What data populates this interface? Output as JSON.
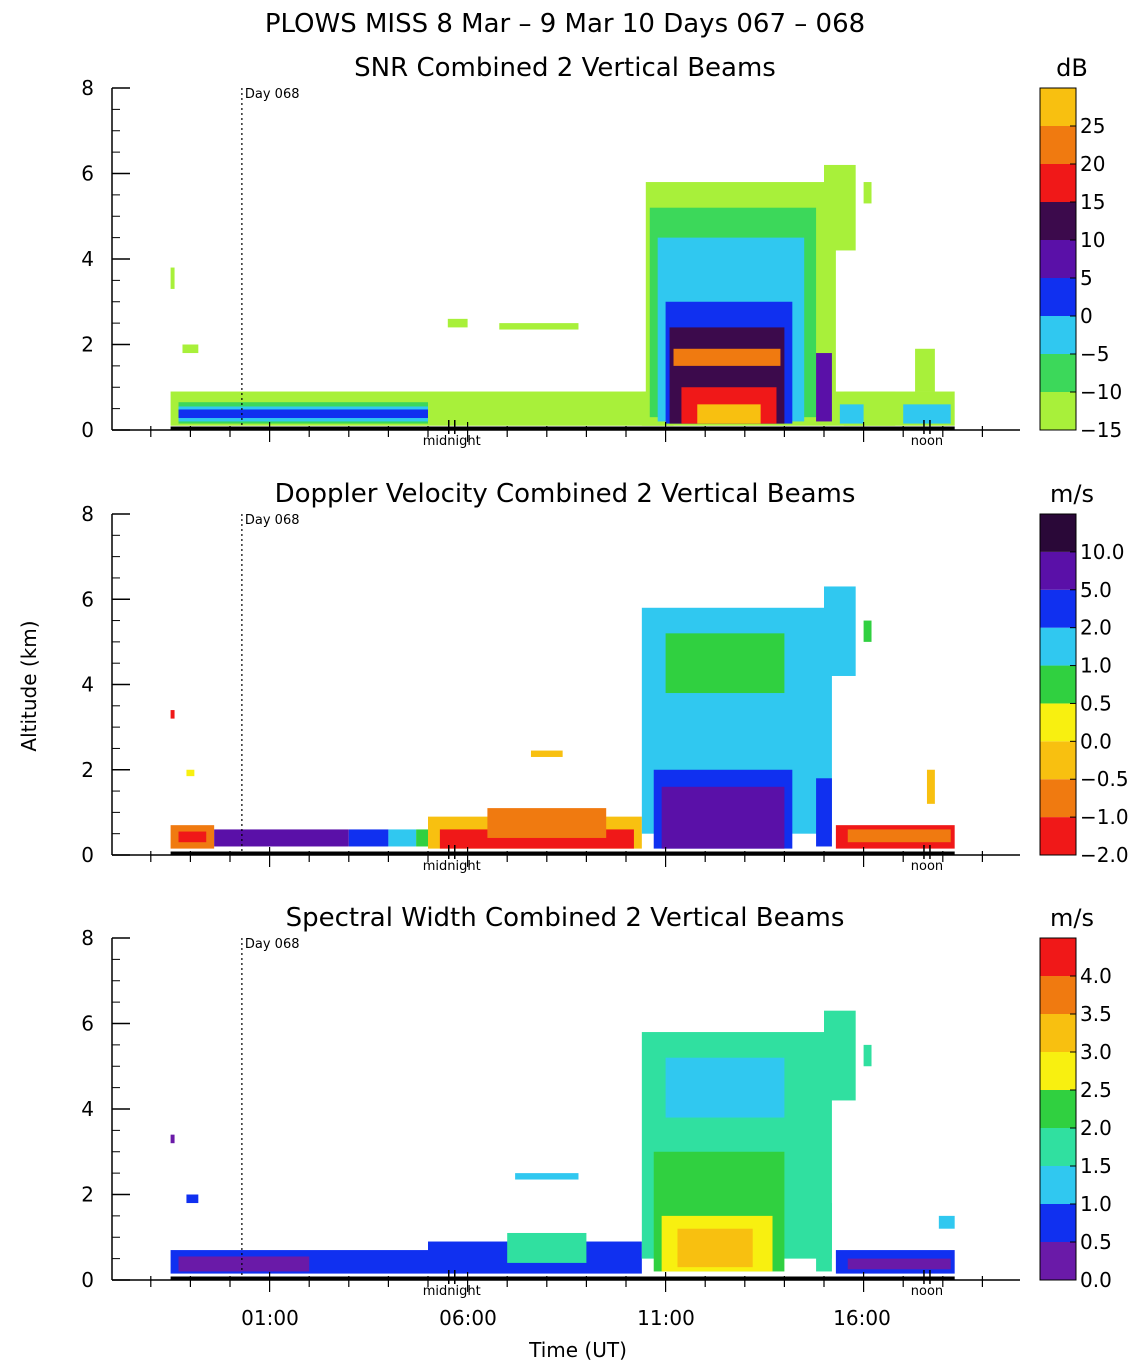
{
  "figure": {
    "title": "PLOWS MISS   8 Mar –  9 Mar 10 Days 067 – 068",
    "ylabel": "Altitude (km)",
    "xlabel": "Time (UT)",
    "x_tick_labels": [
      "01:00",
      "06:00",
      "11:00",
      "16:00"
    ],
    "marker_labels": {
      "day": "Day 068",
      "midnight": "midnight",
      "noon": "noon"
    }
  },
  "chart_data": [
    {
      "type": "heatmap",
      "title": "SNR Combined 2 Vertical Beams",
      "ylim": [
        0,
        8
      ],
      "y_ticks": [
        "0",
        "2",
        "4",
        "6",
        "8"
      ],
      "colorbar": {
        "unit": "dB",
        "labels": [
          "25",
          "20",
          "15",
          "10",
          "5",
          "0",
          "−5",
          "−10",
          "−15"
        ],
        "colors": [
          "#a8f03a",
          "#3cd85a",
          "#30c8f0",
          "#1030f0",
          "#5a10a8",
          "#3c0a4c",
          "#f01818",
          "#f07a10",
          "#f8c010"
        ]
      },
      "regions": [
        {
          "t": [
            -1.5,
            11.2
          ],
          "alt": [
            0.1,
            0.9
          ],
          "level": 0
        },
        {
          "t": [
            -1.3,
            5.0
          ],
          "alt": [
            0.15,
            0.65
          ],
          "level": 1
        },
        {
          "t": [
            -1.3,
            5.0
          ],
          "alt": [
            0.2,
            0.55
          ],
          "level": 2
        },
        {
          "t": [
            -1.3,
            5.0
          ],
          "alt": [
            0.28,
            0.48
          ],
          "level": 3
        },
        {
          "t": [
            -1.5,
            -1.4
          ],
          "alt": [
            3.3,
            3.8
          ],
          "level": 0
        },
        {
          "t": [
            -1.2,
            -0.8
          ],
          "alt": [
            1.8,
            2.0
          ],
          "level": 0
        },
        {
          "t": [
            5.5,
            6.0
          ],
          "alt": [
            2.4,
            2.6
          ],
          "level": 0
        },
        {
          "t": [
            6.8,
            8.8
          ],
          "alt": [
            2.35,
            2.5
          ],
          "level": 0
        },
        {
          "t": [
            10.4,
            16.8
          ],
          "alt": [
            0.1,
            0.9
          ],
          "level": 0
        },
        {
          "t": [
            10.5,
            15.3
          ],
          "alt": [
            0.5,
            5.8
          ],
          "level": 0
        },
        {
          "t": [
            10.6,
            14.8
          ],
          "alt": [
            0.3,
            5.2
          ],
          "level": 1
        },
        {
          "t": [
            10.8,
            14.5
          ],
          "alt": [
            0.2,
            4.5
          ],
          "level": 2
        },
        {
          "t": [
            11.0,
            14.2
          ],
          "alt": [
            0.15,
            3.0
          ],
          "level": 3
        },
        {
          "t": [
            11.1,
            14.0
          ],
          "alt": [
            0.15,
            2.4
          ],
          "level": 5
        },
        {
          "t": [
            11.2,
            13.9
          ],
          "alt": [
            1.5,
            1.9
          ],
          "level": 7
        },
        {
          "t": [
            11.4,
            13.8
          ],
          "alt": [
            0.15,
            1.0
          ],
          "level": 6
        },
        {
          "t": [
            11.8,
            13.4
          ],
          "alt": [
            0.15,
            0.6
          ],
          "level": 8
        },
        {
          "t": [
            14.8,
            15.2
          ],
          "alt": [
            0.2,
            1.8
          ],
          "level": 4
        },
        {
          "t": [
            15.0,
            15.8
          ],
          "alt": [
            4.2,
            6.2
          ],
          "level": 0
        },
        {
          "t": [
            16.0,
            16.2
          ],
          "alt": [
            5.3,
            5.8
          ],
          "level": 0
        },
        {
          "t": [
            15.5,
            18.3
          ],
          "alt": [
            0.1,
            0.9
          ],
          "level": 0
        },
        {
          "t": [
            17.3,
            17.8
          ],
          "alt": [
            0.9,
            1.9
          ],
          "level": 0
        },
        {
          "t": [
            15.4,
            16.0
          ],
          "alt": [
            0.15,
            0.6
          ],
          "level": 2
        },
        {
          "t": [
            17.0,
            18.2
          ],
          "alt": [
            0.15,
            0.6
          ],
          "level": 2
        }
      ]
    },
    {
      "type": "heatmap",
      "title": "Doppler Velocity Combined 2 Vertical Beams",
      "ylim": [
        0,
        8
      ],
      "y_ticks": [
        "0",
        "2",
        "4",
        "6",
        "8"
      ],
      "colorbar": {
        "unit": "m/s",
        "labels": [
          "10.0",
          "5.0",
          "2.0",
          "1.0",
          "0.5",
          "0.0",
          "−0.5",
          "−1.0",
          "−2.0"
        ],
        "colors": [
          "#f01818",
          "#f07a10",
          "#f8c010",
          "#f8f010",
          "#30d040",
          "#30c8f0",
          "#1030f0",
          "#5a10a8",
          "#2a0838"
        ]
      },
      "regions": [
        {
          "t": [
            -1.5,
            -0.4
          ],
          "alt": [
            0.15,
            0.7
          ],
          "level": 1
        },
        {
          "t": [
            -1.3,
            -0.6
          ],
          "alt": [
            0.3,
            0.55
          ],
          "level": 0
        },
        {
          "t": [
            -0.4,
            3.0
          ],
          "alt": [
            0.2,
            0.6
          ],
          "level": 7
        },
        {
          "t": [
            3.0,
            4.0
          ],
          "alt": [
            0.2,
            0.6
          ],
          "level": 6
        },
        {
          "t": [
            4.0,
            4.7
          ],
          "alt": [
            0.2,
            0.6
          ],
          "level": 5
        },
        {
          "t": [
            4.7,
            5.2
          ],
          "alt": [
            0.2,
            0.6
          ],
          "level": 4
        },
        {
          "t": [
            5.0,
            10.4
          ],
          "alt": [
            0.15,
            0.9
          ],
          "level": 2
        },
        {
          "t": [
            5.3,
            10.2
          ],
          "alt": [
            0.15,
            0.6
          ],
          "level": 0
        },
        {
          "t": [
            6.5,
            9.5
          ],
          "alt": [
            0.4,
            1.1
          ],
          "level": 1
        },
        {
          "t": [
            7.6,
            8.4
          ],
          "alt": [
            2.3,
            2.45
          ],
          "level": 2
        },
        {
          "t": [
            -1.5,
            -1.4
          ],
          "alt": [
            3.2,
            3.4
          ],
          "level": 0
        },
        {
          "t": [
            -1.1,
            -0.9
          ],
          "alt": [
            1.85,
            2.0
          ],
          "level": 3
        },
        {
          "t": [
            10.4,
            15.2
          ],
          "alt": [
            0.5,
            5.8
          ],
          "level": 5
        },
        {
          "t": [
            11.0,
            14.0
          ],
          "alt": [
            3.8,
            5.2
          ],
          "level": 4
        },
        {
          "t": [
            10.7,
            14.2
          ],
          "alt": [
            0.15,
            2.0
          ],
          "level": 6
        },
        {
          "t": [
            10.9,
            14.0
          ],
          "alt": [
            0.15,
            1.6
          ],
          "level": 7
        },
        {
          "t": [
            14.8,
            15.2
          ],
          "alt": [
            0.2,
            1.8
          ],
          "level": 6
        },
        {
          "t": [
            15.0,
            15.8
          ],
          "alt": [
            4.2,
            6.3
          ],
          "level": 5
        },
        {
          "t": [
            16.0,
            16.2
          ],
          "alt": [
            5.0,
            5.5
          ],
          "level": 4
        },
        {
          "t": [
            15.3,
            18.3
          ],
          "alt": [
            0.15,
            0.7
          ],
          "level": 0
        },
        {
          "t": [
            15.6,
            18.2
          ],
          "alt": [
            0.3,
            0.6
          ],
          "level": 1
        },
        {
          "t": [
            17.6,
            17.8
          ],
          "alt": [
            1.2,
            2.0
          ],
          "level": 2
        }
      ]
    },
    {
      "type": "heatmap",
      "title": "Spectral Width Combined 2 Vertical Beams",
      "ylim": [
        0,
        8
      ],
      "y_ticks": [
        "0",
        "2",
        "4",
        "6",
        "8"
      ],
      "colorbar": {
        "unit": "m/s",
        "labels": [
          "4.0",
          "3.5",
          "3.0",
          "2.5",
          "2.0",
          "1.5",
          "1.0",
          "0.5",
          "0.0"
        ],
        "colors": [
          "#6a1aa8",
          "#1030f0",
          "#30c8f0",
          "#30e0a0",
          "#30d040",
          "#f8f010",
          "#f8c010",
          "#f07a10",
          "#f01818"
        ]
      },
      "regions": [
        {
          "t": [
            -1.5,
            5.0
          ],
          "alt": [
            0.15,
            0.7
          ],
          "level": 1
        },
        {
          "t": [
            -1.3,
            2.0
          ],
          "alt": [
            0.2,
            0.55
          ],
          "level": 0
        },
        {
          "t": [
            -1.1,
            -0.8
          ],
          "alt": [
            1.8,
            2.0
          ],
          "level": 1
        },
        {
          "t": [
            -1.5,
            -1.4
          ],
          "alt": [
            3.2,
            3.4
          ],
          "level": 0
        },
        {
          "t": [
            5.0,
            10.4
          ],
          "alt": [
            0.15,
            0.9
          ],
          "level": 1
        },
        {
          "t": [
            7.0,
            9.0
          ],
          "alt": [
            0.4,
            1.1
          ],
          "level": 3
        },
        {
          "t": [
            7.2,
            8.8
          ],
          "alt": [
            2.35,
            2.5
          ],
          "level": 2
        },
        {
          "t": [
            10.4,
            15.2
          ],
          "alt": [
            0.5,
            5.8
          ],
          "level": 3
        },
        {
          "t": [
            11.0,
            14.0
          ],
          "alt": [
            3.8,
            5.2
          ],
          "level": 2
        },
        {
          "t": [
            10.7,
            14.0
          ],
          "alt": [
            0.2,
            3.0
          ],
          "level": 4
        },
        {
          "t": [
            10.9,
            13.7
          ],
          "alt": [
            0.2,
            1.5
          ],
          "level": 5
        },
        {
          "t": [
            11.3,
            13.2
          ],
          "alt": [
            0.3,
            1.2
          ],
          "level": 6
        },
        {
          "t": [
            14.8,
            15.2
          ],
          "alt": [
            0.2,
            1.8
          ],
          "level": 3
        },
        {
          "t": [
            15.0,
            15.8
          ],
          "alt": [
            4.2,
            6.3
          ],
          "level": 3
        },
        {
          "t": [
            16.0,
            16.2
          ],
          "alt": [
            5.0,
            5.5
          ],
          "level": 3
        },
        {
          "t": [
            15.3,
            18.3
          ],
          "alt": [
            0.15,
            0.7
          ],
          "level": 1
        },
        {
          "t": [
            15.6,
            18.2
          ],
          "alt": [
            0.25,
            0.5
          ],
          "level": 0
        },
        {
          "t": [
            17.9,
            18.3
          ],
          "alt": [
            1.2,
            1.5
          ],
          "level": 2
        }
      ]
    }
  ]
}
